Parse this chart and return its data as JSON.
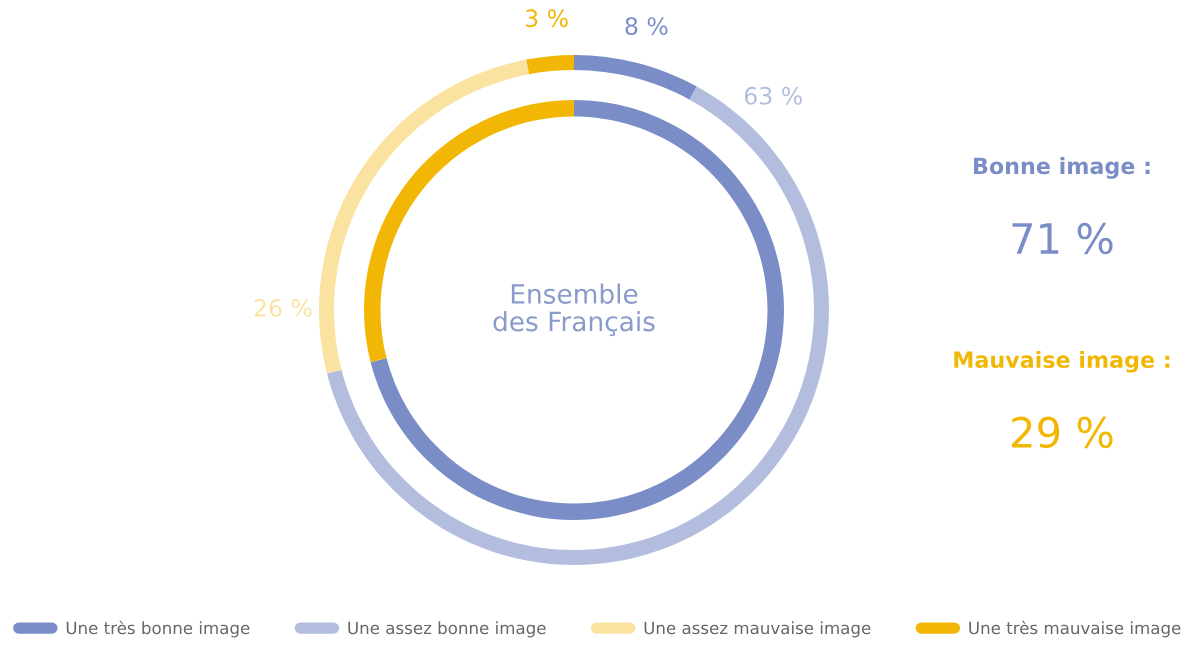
{
  "chart_data": {
    "type": "donut",
    "categories": [
      "Une très bonne image",
      "Une assez bonne image",
      "Une assez mauvaise image",
      "Une très mauvaise image"
    ],
    "legend": "bottom",
    "annotations": [
      "Ensemble\ndes Français",
      "Bonne image :",
      "71 %",
      "Mauvaise image :",
      "29 %"
    ],
    "series": [
      {
        "values": [
          8,
          63,
          26,
          3
        ],
        "colors": [
          "#7b8dc6",
          "#b3bedf",
          "#fae3a0",
          "#f2b705"
        ],
        "value_labels": [
          "8 %",
          "63 %",
          "26 %",
          "3 %"
        ]
      },
      {
        "values": [
          71,
          null,
          29,
          null
        ],
        "colors": [
          "#7b8dc6",
          null,
          "#f2b705",
          null
        ]
      }
    ]
  }
}
